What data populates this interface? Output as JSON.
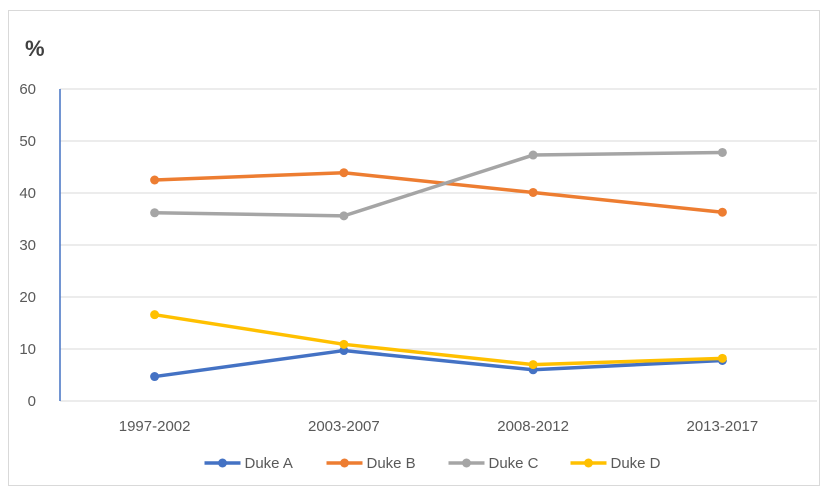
{
  "chart_data": {
    "type": "line",
    "title": "",
    "xlabel": "",
    "ylabel": "%",
    "ylim": [
      0,
      60
    ],
    "yticks": [
      0,
      10,
      20,
      30,
      40,
      50,
      60
    ],
    "grid": true,
    "legend_position": "bottom",
    "categories": [
      "1997-2002",
      "2003-2007",
      "2008-2012",
      "2013-2017"
    ],
    "series": [
      {
        "name": "Duke A",
        "color": "#4472c4",
        "values": [
          4.7,
          9.7,
          6.0,
          7.8
        ]
      },
      {
        "name": "Duke B",
        "color": "#ed7d31",
        "values": [
          42.5,
          43.9,
          40.1,
          36.3
        ]
      },
      {
        "name": "Duke C",
        "color": "#a5a5a5",
        "values": [
          36.2,
          35.6,
          47.3,
          47.8
        ]
      },
      {
        "name": "Duke D",
        "color": "#ffc000",
        "values": [
          16.6,
          10.9,
          7.0,
          8.2
        ]
      }
    ]
  }
}
